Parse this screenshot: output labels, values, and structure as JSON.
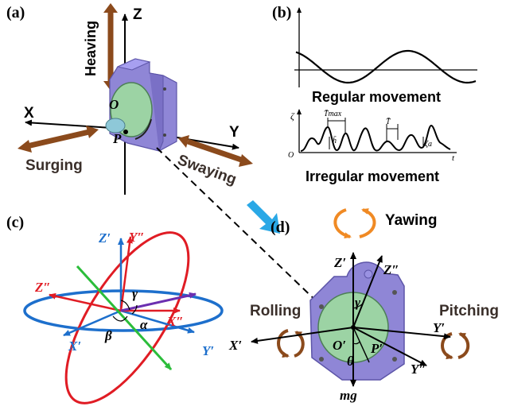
{
  "panels": {
    "a": {
      "label": "(a)",
      "axes": {
        "z": "Z",
        "x": "X",
        "y": "Y"
      },
      "points": {
        "o": "O",
        "p": "P"
      },
      "motions": {
        "heaving": "Heaving",
        "surging": "Surging",
        "swaying": "Swaying"
      }
    },
    "b": {
      "label": "(b)",
      "regular": "Regular movement",
      "irregular": "Irregular movement",
      "zeta": "ζ",
      "t": "t",
      "origin": "O",
      "tmax": "T̄max",
      "hbar": "h̄",
      "tbar": "T̄"
    },
    "c": {
      "label": "(c)",
      "axes": {
        "z1": "Z′",
        "y2": "Y″",
        "z2": "Z″",
        "x2": "X″",
        "x1": "X′",
        "y1": "Y′"
      },
      "angles": {
        "gamma": "γ",
        "alpha": "α",
        "beta": "β"
      }
    },
    "d": {
      "label": "(d)",
      "motions": {
        "yawing": "Yawing",
        "rolling": "Rolling",
        "pitching": "Pitching"
      },
      "axes": {
        "z1": "Z′",
        "z2": "Z″",
        "x1": "X′",
        "y1": "Y′",
        "y2": "Y″"
      },
      "points": {
        "o1": "O′",
        "p1": "P′"
      },
      "angles": {
        "gamma": "γ",
        "theta": "θ"
      },
      "force": "mg"
    }
  },
  "colors": {
    "arrow_brown": "#8b4a1c",
    "device_purple": "#8f86d6",
    "disk_green": "#9cd3a4",
    "frame_red": "#e01c24",
    "frame_blue": "#1d6fcc",
    "frame_purple": "#6b2fb0",
    "frame_green": "#2bbd3a",
    "pointer_blue": "#2aa8e6",
    "rot_orange": "#f08a24"
  }
}
